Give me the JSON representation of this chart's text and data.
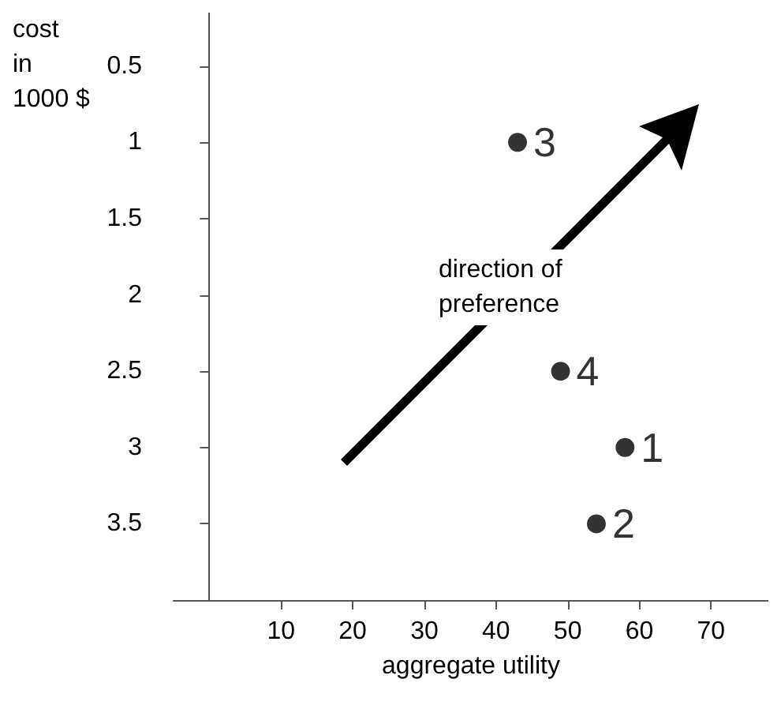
{
  "chart_data": {
    "type": "scatter",
    "xlabel": "aggregate utility",
    "ylabel": "cost\nin\n1000 $",
    "series": [
      {
        "name": "1",
        "x": [
          58
        ],
        "values": [
          3
        ]
      },
      {
        "name": "2",
        "x": [
          54
        ],
        "values": [
          3.5
        ]
      },
      {
        "name": "3",
        "x": [
          43
        ],
        "values": [
          1
        ]
      },
      {
        "name": "4",
        "x": [
          49
        ],
        "values": [
          2.5
        ]
      }
    ],
    "color": "#000000",
    "marker": "circle",
    "grid": false,
    "legend": false,
    "xlim": [
      -5,
      78
    ],
    "xticks": [
      10,
      20,
      30,
      40,
      50,
      60,
      70
    ],
    "ylim": [
      4,
      0.15
    ],
    "yticks": [
      0.5,
      1,
      1.5,
      2,
      2.5,
      3,
      3.5
    ],
    "annotations": [
      "direction of\npreference"
    ]
  }
}
